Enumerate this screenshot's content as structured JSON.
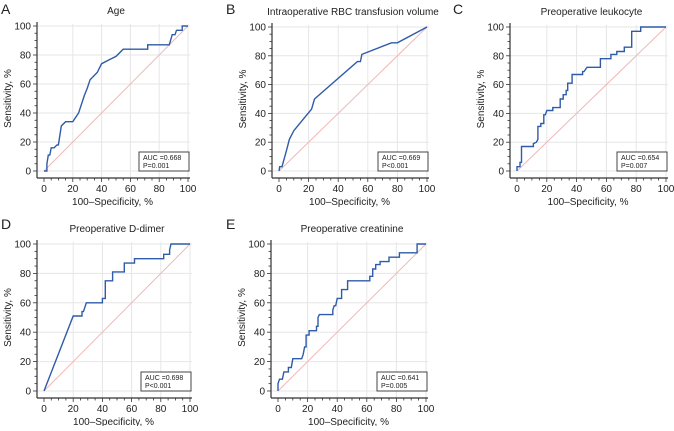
{
  "chart_data": [
    {
      "panel": "A",
      "type": "line",
      "title": "Age",
      "xlabel": "100–Specificity, %",
      "ylabel": "Sensitivity, %",
      "xlim": [
        0,
        100
      ],
      "ylim": [
        0,
        100
      ],
      "ticks": [
        "0",
        "20",
        "40",
        "60",
        "80",
        "100"
      ],
      "grid": true,
      "auc_label": "AUC =0.668",
      "p_label": "P=0.001",
      "points": [
        [
          0,
          0
        ],
        [
          2,
          0
        ],
        [
          2,
          5
        ],
        [
          3,
          11
        ],
        [
          4,
          11
        ],
        [
          5,
          16
        ],
        [
          7,
          16
        ],
        [
          9,
          18
        ],
        [
          10,
          18
        ],
        [
          12,
          31
        ],
        [
          15,
          34
        ],
        [
          20,
          34
        ],
        [
          24,
          40
        ],
        [
          28,
          52
        ],
        [
          30,
          57
        ],
        [
          32,
          63
        ],
        [
          37,
          68
        ],
        [
          40,
          74
        ],
        [
          46,
          77
        ],
        [
          50,
          79
        ],
        [
          55,
          84
        ],
        [
          72,
          84
        ],
        [
          72,
          87
        ],
        [
          87,
          87
        ],
        [
          89,
          94
        ],
        [
          91,
          94
        ],
        [
          92,
          97
        ],
        [
          96,
          97
        ],
        [
          96,
          100
        ],
        [
          100,
          100
        ]
      ]
    },
    {
      "panel": "B",
      "type": "line",
      "title": "Intraoperative RBC transfusion volume",
      "xlabel": "100–Specificity, %",
      "ylabel": "Sensitivity, %",
      "xlim": [
        0,
        100
      ],
      "ylim": [
        0,
        100
      ],
      "ticks": [
        "0",
        "20",
        "40",
        "60",
        "80",
        "100"
      ],
      "grid": true,
      "auc_label": "AUC =0.669",
      "p_label": "P<0.001",
      "points": [
        [
          0,
          0
        ],
        [
          0.5,
          3
        ],
        [
          2,
          3
        ],
        [
          5,
          14
        ],
        [
          7,
          22
        ],
        [
          10,
          28
        ],
        [
          22,
          43
        ],
        [
          24,
          50
        ],
        [
          53,
          76
        ],
        [
          55,
          76
        ],
        [
          56,
          81
        ],
        [
          76,
          89
        ],
        [
          80,
          89
        ],
        [
          100,
          100
        ]
      ]
    },
    {
      "panel": "C",
      "type": "line",
      "title": "Preoperative leukocyte",
      "xlabel": "100–Specificity, %",
      "ylabel": "Sensitivity, %",
      "xlim": [
        0,
        100
      ],
      "ylim": [
        0,
        100
      ],
      "ticks": [
        "0",
        "20",
        "40",
        "60",
        "80",
        "100"
      ],
      "grid": true,
      "auc_label": "AUC =0.654",
      "p_label": "P=0.007",
      "points": [
        [
          0,
          0
        ],
        [
          0,
          3
        ],
        [
          2,
          3
        ],
        [
          2,
          6
        ],
        [
          3,
          6
        ],
        [
          3,
          17
        ],
        [
          11,
          17
        ],
        [
          11,
          19
        ],
        [
          13,
          20
        ],
        [
          14,
          22
        ],
        [
          14,
          31
        ],
        [
          16,
          31
        ],
        [
          16,
          33
        ],
        [
          18,
          33
        ],
        [
          18,
          39
        ],
        [
          19,
          39
        ],
        [
          20,
          42
        ],
        [
          24,
          42
        ],
        [
          24,
          44
        ],
        [
          29,
          44
        ],
        [
          29,
          50
        ],
        [
          31,
          50
        ],
        [
          31,
          53
        ],
        [
          33,
          53
        ],
        [
          33,
          56
        ],
        [
          34,
          56
        ],
        [
          34,
          61
        ],
        [
          37,
          61
        ],
        [
          37,
          67
        ],
        [
          44,
          67
        ],
        [
          44,
          69
        ],
        [
          45,
          69
        ],
        [
          47,
          72
        ],
        [
          56,
          72
        ],
        [
          56,
          78
        ],
        [
          63,
          78
        ],
        [
          63,
          81
        ],
        [
          67,
          81
        ],
        [
          67,
          83
        ],
        [
          72,
          83
        ],
        [
          72,
          86
        ],
        [
          77,
          86
        ],
        [
          77,
          97
        ],
        [
          83,
          97
        ],
        [
          83,
          100
        ],
        [
          100,
          100
        ]
      ]
    },
    {
      "panel": "D",
      "type": "line",
      "title": "Preoperative D-dimer",
      "xlabel": "100–Specificity, %",
      "ylabel": "Sensitivity, %",
      "xlim": [
        0,
        100
      ],
      "ylim": [
        0,
        100
      ],
      "ticks": [
        "0",
        "20",
        "40",
        "60",
        "80",
        "100"
      ],
      "grid": true,
      "auc_label": "AUC =0.698",
      "p_label": "P<0.001",
      "points": [
        [
          0,
          0
        ],
        [
          20,
          51
        ],
        [
          26,
          51
        ],
        [
          26,
          54
        ],
        [
          27,
          54
        ],
        [
          28,
          57
        ],
        [
          29,
          60
        ],
        [
          40,
          60
        ],
        [
          40,
          63
        ],
        [
          42,
          63
        ],
        [
          42,
          75
        ],
        [
          47,
          75
        ],
        [
          47,
          81
        ],
        [
          55,
          81
        ],
        [
          55,
          87
        ],
        [
          62,
          87
        ],
        [
          62,
          90
        ],
        [
          82,
          90
        ],
        [
          82,
          93
        ],
        [
          86,
          93
        ],
        [
          86,
          96
        ],
        [
          87,
          100
        ],
        [
          100,
          100
        ]
      ]
    },
    {
      "panel": "E",
      "type": "line",
      "title": "Preoperative creatinine",
      "xlabel": "100–Specificity, %",
      "ylabel": "Sensitivity, %",
      "xlim": [
        0,
        100
      ],
      "ylim": [
        0,
        100
      ],
      "ticks": [
        "0",
        "20",
        "40",
        "60",
        "80",
        "100"
      ],
      "grid": true,
      "auc_label": "AUC =0.641",
      "p_label": "P=0.005",
      "points": [
        [
          0,
          0
        ],
        [
          0,
          5
        ],
        [
          1,
          8
        ],
        [
          3,
          8
        ],
        [
          4,
          13
        ],
        [
          7,
          13
        ],
        [
          7,
          16
        ],
        [
          9,
          16
        ],
        [
          10,
          22
        ],
        [
          16,
          22
        ],
        [
          17,
          25
        ],
        [
          18,
          30
        ],
        [
          19,
          30
        ],
        [
          19,
          38
        ],
        [
          21,
          38
        ],
        [
          21,
          41
        ],
        [
          26,
          41
        ],
        [
          26,
          44
        ],
        [
          27,
          44
        ],
        [
          27,
          50
        ],
        [
          28,
          52
        ],
        [
          37,
          52
        ],
        [
          37,
          55
        ],
        [
          38,
          58
        ],
        [
          39,
          58
        ],
        [
          40,
          63
        ],
        [
          43,
          63
        ],
        [
          43,
          69
        ],
        [
          47,
          69
        ],
        [
          47,
          75
        ],
        [
          62,
          75
        ],
        [
          62,
          78
        ],
        [
          64,
          78
        ],
        [
          64,
          83
        ],
        [
          66,
          83
        ],
        [
          66,
          86
        ],
        [
          69,
          86
        ],
        [
          69,
          88
        ],
        [
          75,
          88
        ],
        [
          75,
          91
        ],
        [
          82,
          91
        ],
        [
          82,
          94
        ],
        [
          94,
          94
        ],
        [
          94,
          100
        ],
        [
          100,
          100
        ]
      ]
    }
  ],
  "colors": {
    "curve": "#2f5ba8",
    "reference": "#efb8b8",
    "grid": "#e6e6e6",
    "axis": "#333333"
  }
}
